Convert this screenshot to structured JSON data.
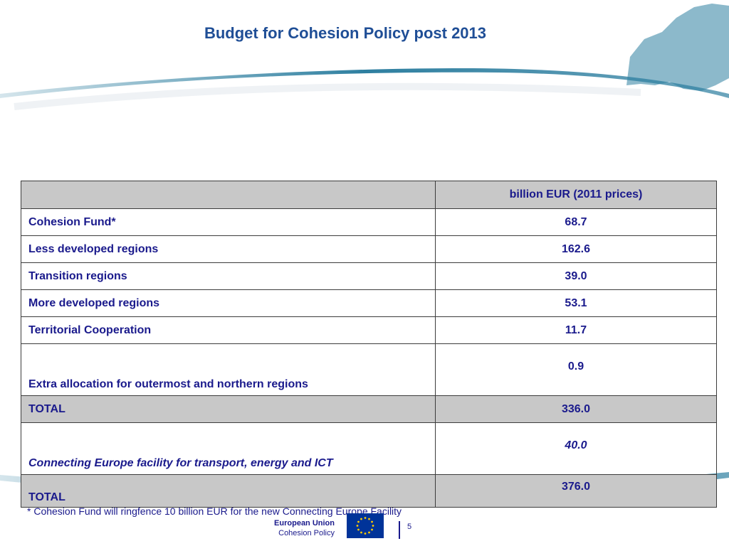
{
  "slide": {
    "title": "Budget for Cohesion Policy post 2013",
    "page_number": "5"
  },
  "table": {
    "header": {
      "label": "",
      "value": "billion EUR (2011 prices)"
    },
    "rows": [
      {
        "label": "Cohesion Fund*",
        "value": "68.7"
      },
      {
        "label": "Less developed regions",
        "value": "162.6"
      },
      {
        "label": "Transition regions",
        "value": "39.0"
      },
      {
        "label": "More developed regions",
        "value": "53.1"
      },
      {
        "label": "Territorial Cooperation",
        "value": "11.7"
      },
      {
        "label": "Extra allocation for outermost and northern regions",
        "value": "0.9"
      },
      {
        "label": "TOTAL",
        "value": "336.0"
      },
      {
        "label": "Connecting Europe facility for transport, energy and ICT",
        "value": "40.0"
      },
      {
        "label": "TOTAL",
        "value": "376.0"
      }
    ]
  },
  "footnote": "* Cohesion Fund will ringfence 10 billion EUR for the new Connecting Europe Facility",
  "branding": {
    "line1": "European Union",
    "line2": "Cohesion Policy",
    "flag_icon": "eu-flag-icon"
  },
  "colors": {
    "title": "#1f4e96",
    "text": "#1a1a8c",
    "swoosh": "#2e7fa0",
    "shaded_row": "#c8c8c8",
    "flag_blue": "#003399",
    "flag_stars": "#ffcc00"
  }
}
